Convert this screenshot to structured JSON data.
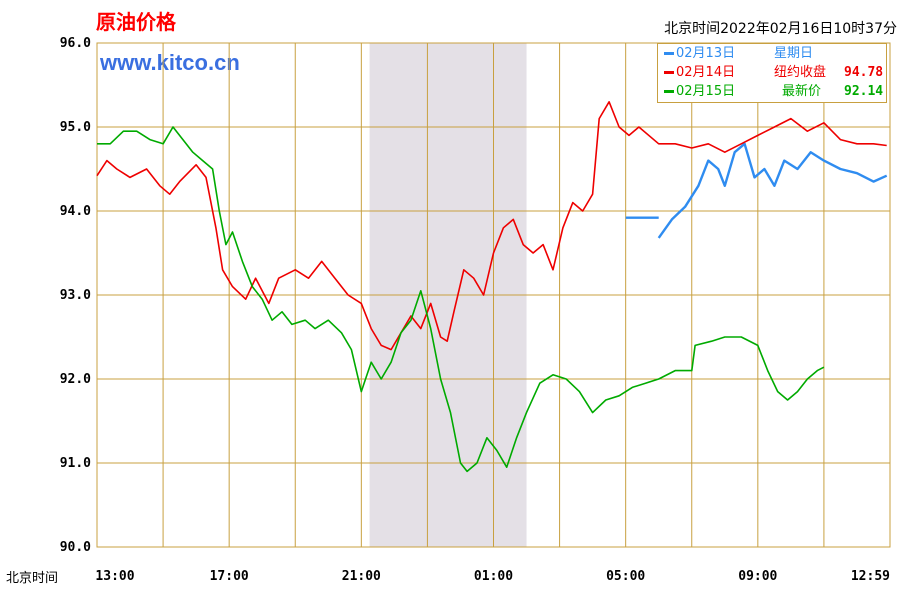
{
  "title": "原油价格",
  "site": "www.kitco.cn",
  "timestamp": "北京时间2022年02月16日10时37分",
  "x_axis_prefix": "北京时间",
  "colors": {
    "blue": "#2f8cf0",
    "red": "#ee0000",
    "green": "#00aa00",
    "grid": "#c8a040",
    "shade": "#e4e0e6"
  },
  "legend": [
    {
      "date": "02月13日",
      "note": "星期日",
      "value": "",
      "color": "#2f8cf0"
    },
    {
      "date": "02月14日",
      "note": "纽约收盘",
      "value": "94.78",
      "color": "#ee0000"
    },
    {
      "date": "02月15日",
      "note": "最新价",
      "value": "92.14",
      "color": "#00aa00"
    }
  ],
  "chart_data": {
    "type": "line",
    "title": "原油价格",
    "ylim": [
      90.0,
      96.0
    ],
    "y_ticks": [
      "96.0",
      "95.0",
      "94.0",
      "93.0",
      "92.0",
      "91.0",
      "90.0"
    ],
    "x_ticks": [
      "13:00",
      "17:00",
      "21:00",
      "01:00",
      "05:00",
      "09:00",
      "12:59"
    ],
    "x_unit": "hours since 13:00",
    "xlim": [
      0,
      24
    ],
    "shaded_range": [
      8.25,
      13.0
    ],
    "grid": true,
    "series": [
      {
        "name": "02月13日",
        "color": "#2f8cf0",
        "points": [
          [
            16.0,
            93.92
          ],
          [
            17.0,
            93.92
          ],
          [
            null,
            null
          ],
          [
            17.0,
            93.68
          ],
          [
            17.4,
            93.9
          ],
          [
            17.8,
            94.05
          ],
          [
            18.2,
            94.3
          ],
          [
            18.5,
            94.6
          ],
          [
            18.8,
            94.5
          ],
          [
            19.0,
            94.3
          ],
          [
            19.3,
            94.7
          ],
          [
            19.6,
            94.8
          ],
          [
            19.9,
            94.4
          ],
          [
            20.2,
            94.5
          ],
          [
            20.5,
            94.3
          ],
          [
            20.8,
            94.6
          ],
          [
            21.2,
            94.5
          ],
          [
            21.6,
            94.7
          ],
          [
            22.0,
            94.6
          ],
          [
            22.5,
            94.5
          ],
          [
            23.0,
            94.45
          ],
          [
            23.5,
            94.35
          ],
          [
            23.9,
            94.42
          ]
        ]
      },
      {
        "name": "02月14日",
        "color": "#ee0000",
        "points": [
          [
            0.0,
            94.42
          ],
          [
            0.3,
            94.6
          ],
          [
            0.6,
            94.5
          ],
          [
            1.0,
            94.4
          ],
          [
            1.5,
            94.5
          ],
          [
            1.9,
            94.3
          ],
          [
            2.2,
            94.2
          ],
          [
            2.5,
            94.35
          ],
          [
            3.0,
            94.55
          ],
          [
            3.3,
            94.4
          ],
          [
            3.6,
            93.8
          ],
          [
            3.8,
            93.3
          ],
          [
            4.1,
            93.1
          ],
          [
            4.5,
            92.95
          ],
          [
            4.8,
            93.2
          ],
          [
            5.2,
            92.9
          ],
          [
            5.5,
            93.2
          ],
          [
            6.0,
            93.3
          ],
          [
            6.4,
            93.2
          ],
          [
            6.8,
            93.4
          ],
          [
            7.2,
            93.2
          ],
          [
            7.6,
            93.0
          ],
          [
            8.0,
            92.9
          ],
          [
            8.3,
            92.6
          ],
          [
            8.6,
            92.4
          ],
          [
            8.9,
            92.35
          ],
          [
            9.2,
            92.55
          ],
          [
            9.5,
            92.75
          ],
          [
            9.8,
            92.6
          ],
          [
            10.1,
            92.9
          ],
          [
            10.4,
            92.5
          ],
          [
            10.6,
            92.45
          ],
          [
            10.8,
            92.8
          ],
          [
            11.1,
            93.3
          ],
          [
            11.4,
            93.2
          ],
          [
            11.7,
            93.0
          ],
          [
            12.0,
            93.5
          ],
          [
            12.3,
            93.8
          ],
          [
            12.6,
            93.9
          ],
          [
            12.9,
            93.6
          ],
          [
            13.2,
            93.5
          ],
          [
            13.5,
            93.6
          ],
          [
            13.8,
            93.3
          ],
          [
            14.1,
            93.8
          ],
          [
            14.4,
            94.1
          ],
          [
            14.7,
            94.0
          ],
          [
            15.0,
            94.2
          ],
          [
            15.2,
            95.1
          ],
          [
            15.5,
            95.3
          ],
          [
            15.8,
            95.0
          ],
          [
            16.1,
            94.9
          ],
          [
            16.4,
            95.0
          ],
          [
            17.0,
            94.8
          ],
          [
            17.5,
            94.8
          ],
          [
            18.0,
            94.75
          ],
          [
            18.5,
            94.8
          ],
          [
            19.0,
            94.7
          ],
          [
            19.5,
            94.8
          ],
          [
            20.0,
            94.9
          ],
          [
            20.5,
            95.0
          ],
          [
            21.0,
            95.1
          ],
          [
            21.5,
            94.95
          ],
          [
            22.0,
            95.05
          ],
          [
            22.5,
            94.85
          ],
          [
            23.0,
            94.8
          ],
          [
            23.5,
            94.8
          ],
          [
            23.9,
            94.78
          ]
        ]
      },
      {
        "name": "02月15日",
        "color": "#00aa00",
        "points": [
          [
            0.0,
            94.8
          ],
          [
            0.4,
            94.8
          ],
          [
            0.8,
            94.95
          ],
          [
            1.2,
            94.95
          ],
          [
            1.6,
            94.85
          ],
          [
            2.0,
            94.8
          ],
          [
            2.3,
            95.0
          ],
          [
            2.6,
            94.85
          ],
          [
            2.9,
            94.7
          ],
          [
            3.2,
            94.6
          ],
          [
            3.5,
            94.5
          ],
          [
            3.7,
            94.0
          ],
          [
            3.9,
            93.6
          ],
          [
            4.1,
            93.75
          ],
          [
            4.4,
            93.4
          ],
          [
            4.7,
            93.1
          ],
          [
            5.0,
            92.95
          ],
          [
            5.3,
            92.7
          ],
          [
            5.6,
            92.8
          ],
          [
            5.9,
            92.65
          ],
          [
            6.3,
            92.7
          ],
          [
            6.6,
            92.6
          ],
          [
            7.0,
            92.7
          ],
          [
            7.4,
            92.55
          ],
          [
            7.7,
            92.35
          ],
          [
            8.0,
            91.85
          ],
          [
            8.3,
            92.2
          ],
          [
            8.6,
            92.0
          ],
          [
            8.9,
            92.2
          ],
          [
            9.2,
            92.55
          ],
          [
            9.5,
            92.7
          ],
          [
            9.8,
            93.05
          ],
          [
            10.1,
            92.6
          ],
          [
            10.4,
            92.0
          ],
          [
            10.7,
            91.6
          ],
          [
            11.0,
            91.0
          ],
          [
            11.2,
            90.9
          ],
          [
            11.5,
            91.0
          ],
          [
            11.8,
            91.3
          ],
          [
            12.1,
            91.15
          ],
          [
            12.4,
            90.95
          ],
          [
            12.7,
            91.3
          ],
          [
            13.0,
            91.6
          ],
          [
            13.4,
            91.95
          ],
          [
            13.8,
            92.05
          ],
          [
            14.2,
            92.0
          ],
          [
            14.6,
            91.85
          ],
          [
            15.0,
            91.6
          ],
          [
            15.4,
            91.75
          ],
          [
            15.8,
            91.8
          ],
          [
            16.2,
            91.9
          ],
          [
            16.6,
            91.95
          ],
          [
            17.0,
            92.0
          ],
          [
            17.5,
            92.1
          ],
          [
            18.0,
            92.1
          ],
          [
            18.1,
            92.4
          ],
          [
            18.6,
            92.45
          ],
          [
            19.0,
            92.5
          ],
          [
            19.5,
            92.5
          ],
          [
            20.0,
            92.4
          ],
          [
            20.3,
            92.1
          ],
          [
            20.6,
            91.85
          ],
          [
            20.9,
            91.75
          ],
          [
            21.2,
            91.85
          ],
          [
            21.5,
            92.0
          ],
          [
            21.8,
            92.1
          ],
          [
            22.0,
            92.14
          ]
        ]
      }
    ]
  }
}
